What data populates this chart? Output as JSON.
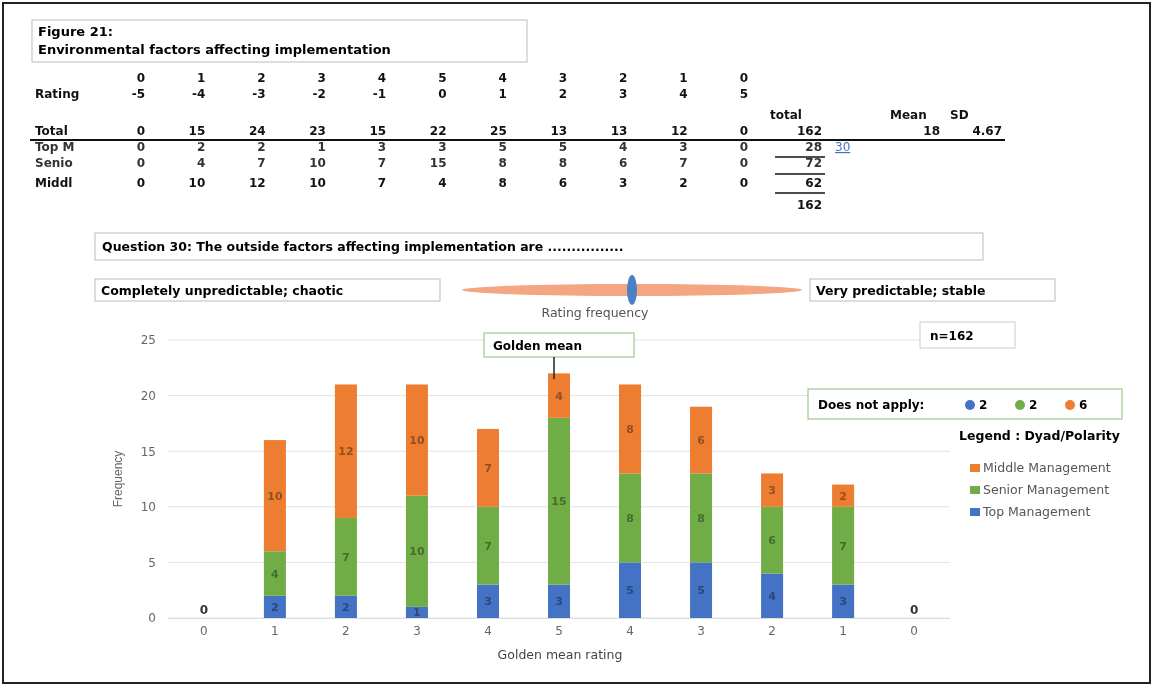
{
  "chart_data": {
    "type": "bar",
    "stacked": true,
    "title": "Figure 21:\nEnvironmental factors affecting implementation",
    "subtitle": "Question  30: The outside factors affecting implementation are ................",
    "xlabel": "Golden mean rating",
    "ylabel": "Frequency",
    "legend_title": "Legend  : Dyad/Polarity",
    "categories": [
      "0",
      "1",
      "2",
      "3",
      "4",
      "5",
      "4",
      "3",
      "2",
      "1",
      "0"
    ],
    "series": [
      {
        "name": "Top Management",
        "color": "#4472c4",
        "values": [
          0,
          2,
          2,
          1,
          3,
          3,
          5,
          5,
          4,
          3,
          0
        ],
        "value_labels": [
          null,
          "2",
          "2",
          "1",
          "3",
          "3",
          "5",
          "5",
          "4",
          "3",
          null
        ]
      },
      {
        "name": "Senior Management",
        "color": "#70ad47",
        "values": [
          0,
          4,
          7,
          10,
          7,
          15,
          8,
          8,
          6,
          7,
          0
        ],
        "value_labels": [
          null,
          "4",
          "7",
          "10",
          "7",
          "15",
          "8",
          "8",
          "6",
          "7",
          null
        ]
      },
      {
        "name": "Middle Management",
        "color": "#ed7d31",
        "values": [
          0,
          10,
          12,
          10,
          7,
          4,
          8,
          6,
          3,
          2,
          0
        ],
        "value_labels": [
          null,
          "10",
          "12",
          "10",
          "7",
          "4",
          "8",
          "6",
          "3",
          "2",
          null
        ]
      }
    ],
    "totals": [
      "0",
      null,
      null,
      null,
      null,
      null,
      null,
      null,
      null,
      null,
      "0"
    ],
    "ylim": [
      0,
      25
    ],
    "yticks": [
      0,
      5,
      10,
      15,
      20,
      25
    ],
    "grid": "y",
    "legend": "right",
    "annotations": [
      "\t0\t1\t2\t3\t4\t5\t4\t3\t2\t1\t0",
      "Rating\t-5\t-4\t-3\t-2\t-1\t0\t1\t2\t3\t4\t5",
      "\t\t\t\t\t\t\t\t\t\t\t\ttotal\t\tMean\tSD",
      "Total\t0\t15\t24\t23\t15\t22\t25\t13\t13\t12\t0\t162\t\t18\t4.67",
      "Top M\t0\t2\t2\t1\t3\t3\t5\t5\t4\t3\t0\t28\t30",
      "Senio\t0\t4\t7\t10\t7\t15\t8\t8\t6\t7\t0\t72",
      "Middl\t0\t10\t12\t10\t7\t4\t8\t6\t3\t2\t0\t62",
      "\t\t\t\t\t\t\t\t\t\t\t\t162",
      "Completely unpredictable; chaotic",
      "Very predictable; stable",
      "Rating frequency",
      "n=162",
      {
        "text": "Golden mean",
        "x": "5",
        "y": 22
      },
      "Does not apply:",
      "2",
      "2",
      "6"
    ]
  }
}
